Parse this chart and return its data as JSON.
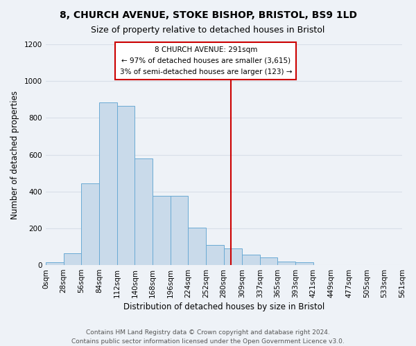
{
  "title_line1": "8, CHURCH AVENUE, STOKE BISHOP, BRISTOL, BS9 1LD",
  "title_line2": "Size of property relative to detached houses in Bristol",
  "xlabel": "Distribution of detached houses by size in Bristol",
  "ylabel": "Number of detached properties",
  "bar_edges": [
    0,
    28,
    56,
    84,
    112,
    140,
    168,
    196,
    224,
    252,
    280,
    309,
    337,
    365,
    393,
    421,
    449,
    477,
    505,
    533,
    561
  ],
  "bar_heights": [
    15,
    65,
    445,
    885,
    865,
    580,
    375,
    375,
    205,
    110,
    90,
    55,
    40,
    18,
    15,
    0,
    0,
    0,
    0,
    0
  ],
  "bar_color": "#c9daea",
  "bar_edge_color": "#6aaad4",
  "vline_x": 291,
  "vline_color": "#cc0000",
  "annotation_title": "8 CHURCH AVENUE: 291sqm",
  "annotation_line2": "← 97% of detached houses are smaller (3,615)",
  "annotation_line3": "3% of semi-detached houses are larger (123) →",
  "annotation_box_color": "#ffffff",
  "annotation_box_edge": "#cc0000",
  "ylim": [
    0,
    1200
  ],
  "yticks": [
    0,
    200,
    400,
    600,
    800,
    1000,
    1200
  ],
  "xtick_labels": [
    "0sqm",
    "28sqm",
    "56sqm",
    "84sqm",
    "112sqm",
    "140sqm",
    "168sqm",
    "196sqm",
    "224sqm",
    "252sqm",
    "280sqm",
    "309sqm",
    "337sqm",
    "365sqm",
    "393sqm",
    "421sqm",
    "449sqm",
    "477sqm",
    "505sqm",
    "533sqm",
    "561sqm"
  ],
  "footer_line1": "Contains HM Land Registry data © Crown copyright and database right 2024.",
  "footer_line2": "Contains public sector information licensed under the Open Government Licence v3.0.",
  "bg_color": "#eef2f7",
  "grid_color": "#d8dfe8",
  "title_fontsize": 10,
  "subtitle_fontsize": 9,
  "axis_label_fontsize": 8.5,
  "tick_fontsize": 7.5,
  "footer_fontsize": 6.5,
  "annotation_fontsize": 7.5,
  "xlim_max": 561
}
